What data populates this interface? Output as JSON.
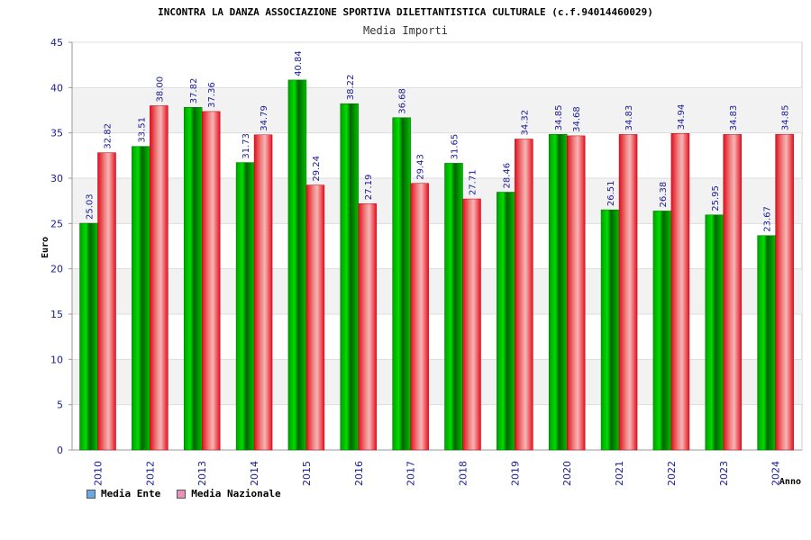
{
  "chart_data": {
    "type": "bar",
    "title": "INCONTRA LA DANZA ASSOCIAZIONE SPORTIVA DILETTANTISTICA CULTURALE (c.f.94014460029)",
    "subtitle": "Media Importi",
    "xlabel": "Anno",
    "ylabel": "Euro",
    "ylim": [
      0,
      45
    ],
    "yticks": [
      "0",
      "5",
      "10",
      "15",
      "20",
      "25",
      "30",
      "35",
      "40",
      "45"
    ],
    "categories": [
      "2010",
      "2012",
      "2013",
      "2014",
      "2015",
      "2016",
      "2017",
      "2018",
      "2019",
      "2020",
      "2021",
      "2022",
      "2023",
      "2024"
    ],
    "series": [
      {
        "name": "Media Ente",
        "color": "#00b000",
        "legend_color": "#6aa8e8",
        "values": [
          25.03,
          33.51,
          37.82,
          31.73,
          40.84,
          38.22,
          36.68,
          31.65,
          28.46,
          34.85,
          26.51,
          26.38,
          25.95,
          23.67
        ],
        "labels": [
          "25.03",
          "33.51",
          "37.82",
          "31.73",
          "40.84",
          "38.22",
          "36.68",
          "31.65",
          "28.46",
          "34.85",
          "26.51",
          "26.38",
          "25.95",
          "23.67"
        ]
      },
      {
        "name": "Media Nazionale",
        "color": "#e81c2c",
        "legend_color": "#e890b8",
        "values": [
          32.82,
          38.0,
          37.36,
          34.79,
          29.24,
          27.19,
          29.43,
          27.71,
          34.32,
          34.68,
          34.83,
          34.94,
          34.83,
          34.85
        ],
        "labels": [
          "32.82",
          "38.00",
          "37.36",
          "34.79",
          "29.24",
          "27.19",
          "29.43",
          "27.71",
          "34.32",
          "34.68",
          "34.83",
          "34.94",
          "34.83",
          "34.85"
        ]
      }
    ],
    "grid": true,
    "legend": "bottom-left"
  }
}
